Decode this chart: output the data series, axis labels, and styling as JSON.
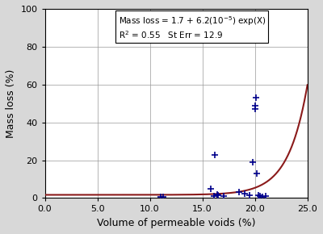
{
  "title": "",
  "xlabel": "Volume of permeable voids (%)",
  "ylabel": "Mass loss (%)",
  "xlim": [
    0.0,
    25.0
  ],
  "ylim": [
    0,
    100
  ],
  "xticks": [
    0.0,
    5.0,
    10.0,
    15.0,
    20.0,
    25.0
  ],
  "yticks": [
    0,
    20,
    40,
    60,
    80,
    100
  ],
  "xtick_labels": [
    "0.0",
    "5.0",
    "10.0",
    "15.0",
    "20.0",
    "25.0"
  ],
  "ytick_labels": [
    "0",
    "20",
    "40",
    "60",
    "80",
    "100"
  ],
  "scatter_x": [
    11.0,
    11.3,
    15.8,
    16.1,
    16.2,
    16.4,
    16.5,
    17.0,
    18.5,
    19.0,
    19.5,
    19.8,
    20.0,
    20.05,
    20.1,
    20.2,
    20.3,
    20.5,
    20.7,
    21.0
  ],
  "scatter_y": [
    0.5,
    0.8,
    5.0,
    1.0,
    23.0,
    2.0,
    1.5,
    1.0,
    3.0,
    2.5,
    1.5,
    19.0,
    49.0,
    47.0,
    53.0,
    13.0,
    1.5,
    1.0,
    0.8,
    1.0
  ],
  "scatter_color": "#00008B",
  "scatter_marker": "+",
  "scatter_size": 35,
  "curve_color": "#8B1A1A",
  "curve_a": 1.7,
  "curve_b": 6.2e-05,
  "curve_xscale": 0.55,
  "annotation_text": "Mass loss = 1.7 + 6.2(10$^{-5}$) exp(X)\nR$^2$ = 0.55   St Err = 12.9",
  "bg_color": "#d8d8d8",
  "plot_bg_color": "#ffffff"
}
